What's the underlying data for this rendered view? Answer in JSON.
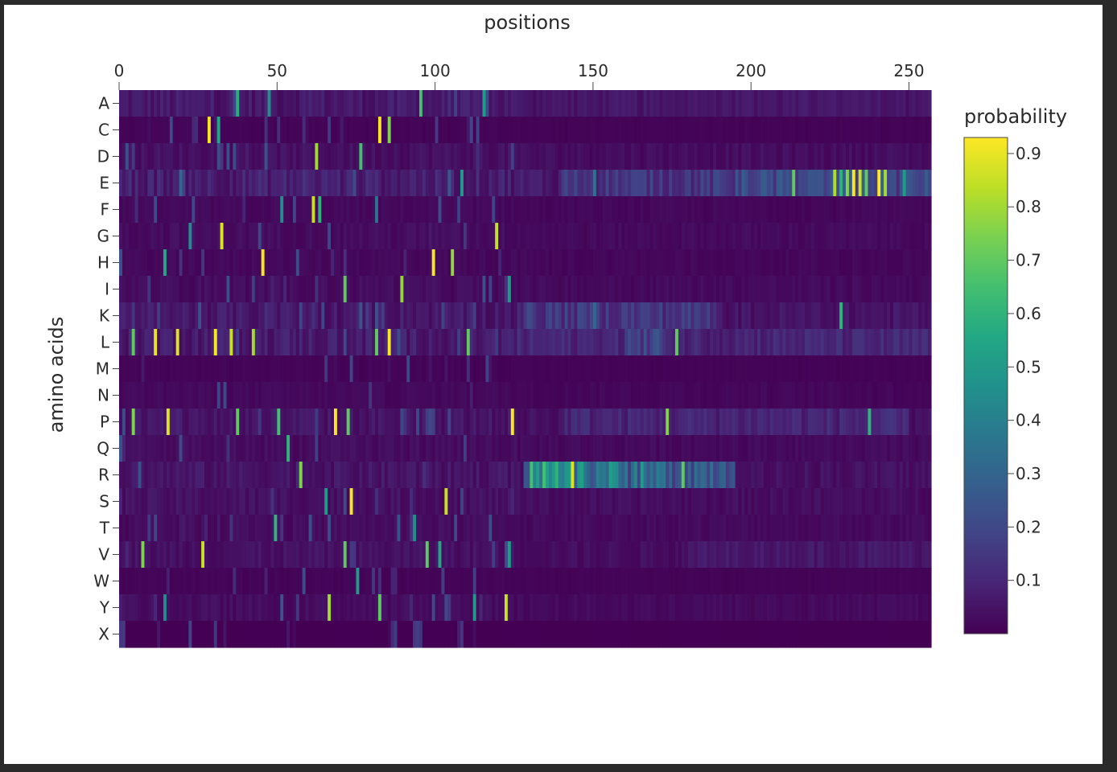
{
  "chart_data": {
    "type": "heatmap",
    "title": "positions",
    "xlabel": "positions",
    "ylabel": "amino acids",
    "x_ticks": [
      0,
      50,
      100,
      150,
      200,
      250
    ],
    "xlim": [
      0,
      257
    ],
    "x_axis_position": "top",
    "n_positions": 257,
    "rows": [
      "A",
      "C",
      "D",
      "E",
      "F",
      "G",
      "H",
      "I",
      "K",
      "L",
      "M",
      "N",
      "P",
      "Q",
      "R",
      "S",
      "T",
      "V",
      "W",
      "Y",
      "X"
    ],
    "colorbar": {
      "title": "probability",
      "ticks": [
        0.1,
        0.2,
        0.3,
        0.4,
        0.5,
        0.6,
        0.7,
        0.8,
        0.9
      ],
      "range": [
        0,
        0.93
      ],
      "colorscale": "viridis",
      "placement": "right"
    },
    "background_probability": {
      "A": 0.06,
      "C": 0.01,
      "D": 0.04,
      "E": 0.08,
      "F": 0.02,
      "G": 0.03,
      "H": 0.02,
      "I": 0.03,
      "K": 0.06,
      "L": 0.07,
      "M": 0.01,
      "N": 0.02,
      "P": 0.05,
      "Q": 0.03,
      "R": 0.05,
      "S": 0.04,
      "T": 0.03,
      "V": 0.04,
      "W": 0.01,
      "Y": 0.03,
      "X": 0.0
    },
    "peaks": [
      {
        "aa": "A",
        "position": 37,
        "p": 0.58
      },
      {
        "aa": "A",
        "position": 47,
        "p": 0.45
      },
      {
        "aa": "A",
        "position": 95,
        "p": 0.65
      },
      {
        "aa": "A",
        "position": 115,
        "p": 0.5
      },
      {
        "aa": "C",
        "position": 28,
        "p": 0.92
      },
      {
        "aa": "C",
        "position": 31,
        "p": 0.55
      },
      {
        "aa": "C",
        "position": 82,
        "p": 0.92
      },
      {
        "aa": "C",
        "position": 85,
        "p": 0.75
      },
      {
        "aa": "D",
        "position": 62,
        "p": 0.8
      },
      {
        "aa": "D",
        "position": 76,
        "p": 0.65
      },
      {
        "aa": "E",
        "position": 108,
        "p": 0.5
      },
      {
        "aa": "E",
        "position": 150,
        "p": 0.35
      },
      {
        "aa": "E",
        "position": 213,
        "p": 0.7
      },
      {
        "aa": "E",
        "position": 226,
        "p": 0.82
      },
      {
        "aa": "E",
        "position": 228,
        "p": 0.6
      },
      {
        "aa": "E",
        "position": 230,
        "p": 0.75
      },
      {
        "aa": "E",
        "position": 232,
        "p": 0.92
      },
      {
        "aa": "E",
        "position": 234,
        "p": 0.85
      },
      {
        "aa": "E",
        "position": 236,
        "p": 0.7
      },
      {
        "aa": "E",
        "position": 240,
        "p": 0.93
      },
      {
        "aa": "E",
        "position": 242,
        "p": 0.8
      },
      {
        "aa": "E",
        "position": 248,
        "p": 0.5
      },
      {
        "aa": "F",
        "position": 61,
        "p": 0.85
      },
      {
        "aa": "F",
        "position": 63,
        "p": 0.6
      },
      {
        "aa": "F",
        "position": 51,
        "p": 0.45
      },
      {
        "aa": "F",
        "position": 81,
        "p": 0.35
      },
      {
        "aa": "G",
        "position": 32,
        "p": 0.88
      },
      {
        "aa": "G",
        "position": 22,
        "p": 0.45
      },
      {
        "aa": "G",
        "position": 119,
        "p": 0.85
      },
      {
        "aa": "H",
        "position": 45,
        "p": 0.92
      },
      {
        "aa": "H",
        "position": 99,
        "p": 0.92
      },
      {
        "aa": "H",
        "position": 105,
        "p": 0.78
      },
      {
        "aa": "H",
        "position": 14,
        "p": 0.55
      },
      {
        "aa": "I",
        "position": 71,
        "p": 0.7
      },
      {
        "aa": "I",
        "position": 89,
        "p": 0.78
      },
      {
        "aa": "I",
        "position": 123,
        "p": 0.5
      },
      {
        "aa": "K",
        "position": 228,
        "p": 0.6
      },
      {
        "aa": "K",
        "position": 150,
        "p": 0.3
      },
      {
        "aa": "L",
        "position": 4,
        "p": 0.7
      },
      {
        "aa": "L",
        "position": 11,
        "p": 0.9
      },
      {
        "aa": "L",
        "position": 18,
        "p": 0.88
      },
      {
        "aa": "L",
        "position": 30,
        "p": 0.92
      },
      {
        "aa": "L",
        "position": 35,
        "p": 0.85
      },
      {
        "aa": "L",
        "position": 42,
        "p": 0.8
      },
      {
        "aa": "L",
        "position": 81,
        "p": 0.7
      },
      {
        "aa": "L",
        "position": 85,
        "p": 0.92
      },
      {
        "aa": "L",
        "position": 110,
        "p": 0.7
      },
      {
        "aa": "L",
        "position": 176,
        "p": 0.7
      },
      {
        "aa": "P",
        "position": 4,
        "p": 0.75
      },
      {
        "aa": "P",
        "position": 15,
        "p": 0.88
      },
      {
        "aa": "P",
        "position": 37,
        "p": 0.7
      },
      {
        "aa": "P",
        "position": 50,
        "p": 0.65
      },
      {
        "aa": "P",
        "position": 68,
        "p": 0.92
      },
      {
        "aa": "P",
        "position": 72,
        "p": 0.7
      },
      {
        "aa": "P",
        "position": 124,
        "p": 0.92
      },
      {
        "aa": "P",
        "position": 173,
        "p": 0.75
      },
      {
        "aa": "P",
        "position": 237,
        "p": 0.6
      },
      {
        "aa": "Q",
        "position": 53,
        "p": 0.6
      },
      {
        "aa": "R",
        "position": 57,
        "p": 0.75
      },
      {
        "aa": "R",
        "position": 143,
        "p": 0.88
      },
      {
        "aa": "R",
        "position": 130,
        "p": 0.65
      },
      {
        "aa": "R",
        "position": 134,
        "p": 0.65
      },
      {
        "aa": "R",
        "position": 138,
        "p": 0.6
      },
      {
        "aa": "R",
        "position": 178,
        "p": 0.7
      },
      {
        "aa": "R",
        "position": 165,
        "p": 0.5
      },
      {
        "aa": "S",
        "position": 73,
        "p": 0.92
      },
      {
        "aa": "S",
        "position": 103,
        "p": 0.85
      },
      {
        "aa": "S",
        "position": 65,
        "p": 0.5
      },
      {
        "aa": "T",
        "position": 49,
        "p": 0.6
      },
      {
        "aa": "T",
        "position": 93,
        "p": 0.45
      },
      {
        "aa": "V",
        "position": 7,
        "p": 0.75
      },
      {
        "aa": "V",
        "position": 26,
        "p": 0.85
      },
      {
        "aa": "V",
        "position": 71,
        "p": 0.7
      },
      {
        "aa": "V",
        "position": 97,
        "p": 0.7
      },
      {
        "aa": "V",
        "position": 101,
        "p": 0.55
      },
      {
        "aa": "V",
        "position": 123,
        "p": 0.5
      },
      {
        "aa": "W",
        "position": 75,
        "p": 0.5
      },
      {
        "aa": "Y",
        "position": 66,
        "p": 0.8
      },
      {
        "aa": "Y",
        "position": 82,
        "p": 0.7
      },
      {
        "aa": "Y",
        "position": 112,
        "p": 0.5
      },
      {
        "aa": "Y",
        "position": 122,
        "p": 0.85
      },
      {
        "aa": "Y",
        "position": 14,
        "p": 0.45
      }
    ],
    "bands": [
      {
        "aa": "E",
        "from": 140,
        "to": 257,
        "p": 0.15
      },
      {
        "aa": "E",
        "from": 195,
        "to": 257,
        "p": 0.2
      },
      {
        "aa": "K",
        "from": 126,
        "to": 190,
        "p": 0.15
      },
      {
        "aa": "L",
        "from": 126,
        "to": 257,
        "p": 0.1
      },
      {
        "aa": "L",
        "from": 160,
        "to": 175,
        "p": 0.18
      },
      {
        "aa": "R",
        "from": 128,
        "to": 195,
        "p": 0.3
      },
      {
        "aa": "R",
        "from": 128,
        "to": 160,
        "p": 0.38
      },
      {
        "aa": "P",
        "from": 140,
        "to": 250,
        "p": 0.1
      },
      {
        "aa": "V",
        "from": 180,
        "to": 257,
        "p": 0.06
      },
      {
        "aa": "A",
        "from": 126,
        "to": 257,
        "p": 0.05
      }
    ]
  }
}
